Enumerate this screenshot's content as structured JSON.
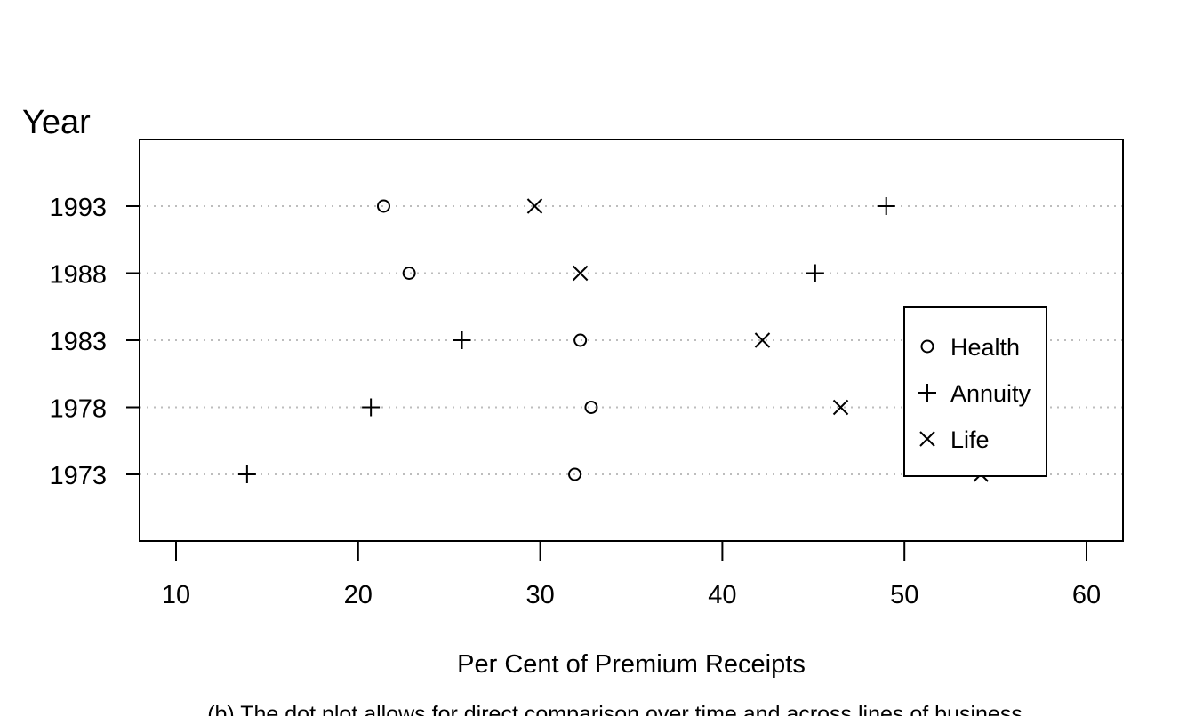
{
  "chart_data": {
    "type": "scatter",
    "subtype": "dot-plot",
    "ylabel": "Year",
    "xlabel": "Per Cent of Premium Receipts",
    "caption": "(b) The dot plot allows for direct comparison over time and across lines of business.",
    "categories": [
      "1973",
      "1978",
      "1983",
      "1988",
      "1993"
    ],
    "xlim": [
      8,
      62
    ],
    "x_ticks": [
      10,
      20,
      30,
      40,
      50,
      60
    ],
    "grid": "horizontal dotted lines at each year",
    "legend_position": "right",
    "series": [
      {
        "name": "Health",
        "marker": "circle",
        "values": [
          31.9,
          32.8,
          32.2,
          22.8,
          21.4
        ]
      },
      {
        "name": "Annuity",
        "marker": "plus",
        "values": [
          13.9,
          20.7,
          25.7,
          45.1,
          49.0
        ]
      },
      {
        "name": "Life",
        "marker": "cross",
        "values": [
          54.2,
          46.5,
          42.2,
          32.2,
          29.7
        ]
      }
    ]
  }
}
